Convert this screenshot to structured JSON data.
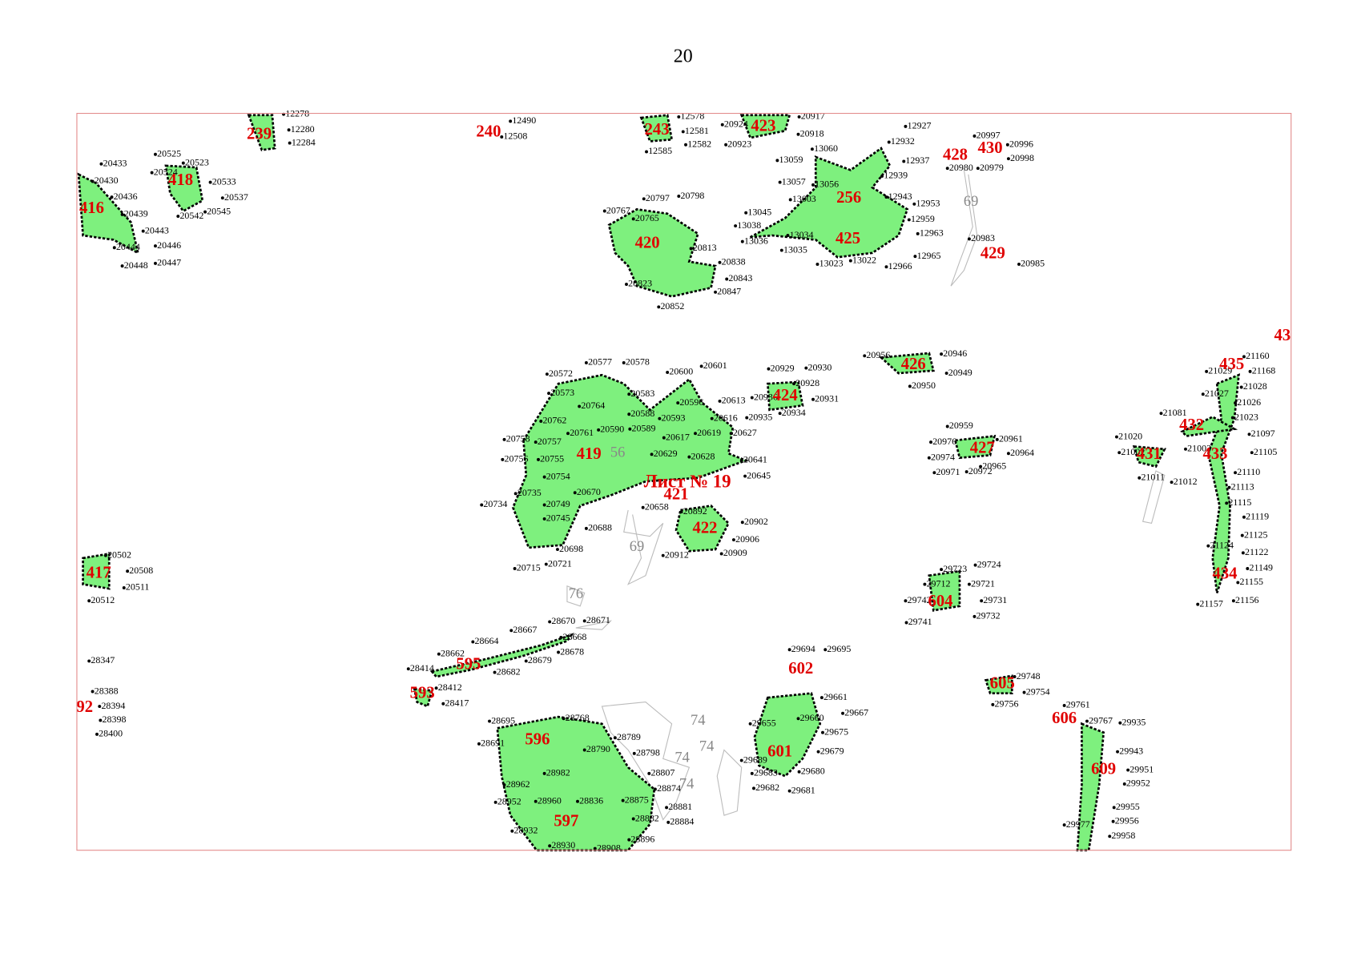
{
  "page_number": "20",
  "sheet_label": "Лист № 19",
  "parcels": [
    "239",
    "240",
    "243",
    "423",
    "428",
    "430",
    "418",
    "416",
    "256",
    "420",
    "425",
    "429",
    "426",
    "435",
    "424",
    "432",
    "427",
    "419",
    "431",
    "433",
    "421",
    "422",
    "417",
    "434",
    "604",
    "595",
    "602",
    "605",
    "593",
    "606",
    "596",
    "601",
    "609",
    "597",
    "43",
    "92"
  ],
  "contours": [
    "56",
    "69",
    "69",
    "76",
    "74",
    "74",
    "74",
    "74"
  ],
  "points": [
    "20433",
    "20430",
    "20436",
    "20439",
    "20443",
    "20446",
    "20444",
    "20448",
    "20447",
    "20525",
    "20523",
    "20524",
    "20533",
    "20537",
    "20545",
    "20542",
    "12278",
    "12280",
    "12284",
    "12490",
    "12508",
    "12578",
    "12581",
    "12582",
    "12585",
    "20924",
    "20917",
    "20918",
    "20923",
    "12927",
    "12932",
    "12937",
    "12939",
    "12943",
    "12953",
    "12959",
    "12963",
    "12965",
    "12966",
    "13022",
    "13023",
    "13035",
    "13034",
    "13036",
    "13038",
    "13045",
    "13003",
    "13057",
    "13059",
    "13060",
    "13056",
    "20997",
    "20996",
    "20998",
    "20980",
    "20979",
    "20983",
    "20985",
    "20797",
    "20798",
    "20767",
    "20765",
    "20813",
    "20838",
    "20843",
    "20847",
    "20852",
    "20823",
    "20577",
    "20578",
    "20572",
    "20600",
    "20601",
    "20573",
    "20583",
    "20613",
    "20764",
    "20596",
    "20762",
    "20588",
    "20593",
    "20616",
    "20761",
    "20590",
    "20589",
    "20627",
    "20758",
    "20757",
    "20617",
    "20619",
    "20629",
    "20756",
    "20755",
    "20628",
    "20641",
    "20754",
    "20645",
    "20670",
    "20735",
    "20734",
    "20749",
    "20745",
    "20688",
    "20698",
    "20721",
    "20715",
    "20658",
    "20892",
    "20902",
    "20906",
    "20909",
    "20912",
    "20929",
    "20930",
    "20928",
    "20936",
    "20931",
    "20935",
    "20934",
    "20956",
    "20946",
    "20949",
    "20950",
    "20959",
    "20961",
    "20976",
    "20964",
    "20974",
    "20965",
    "20972",
    "20971",
    "21160",
    "21168",
    "21029",
    "21028",
    "21027",
    "21026",
    "21081",
    "21023",
    "21097",
    "21105",
    "21020",
    "21002",
    "21003",
    "21012",
    "21011",
    "21110",
    "21113",
    "21115",
    "21119",
    "21125",
    "21124",
    "21122",
    "21149",
    "21155",
    "21157",
    "21156",
    "20502",
    "20508",
    "20511",
    "20512",
    "29723",
    "29724",
    "29721",
    "29712",
    "29742",
    "29731",
    "29732",
    "29741",
    "28670",
    "28671",
    "28667",
    "28668",
    "28664",
    "28678",
    "28662",
    "28679",
    "28414",
    "28682",
    "28417",
    "28412",
    "29694",
    "29695",
    "29661",
    "29667",
    "29660",
    "29655",
    "29675",
    "29679",
    "29680",
    "29681",
    "29682",
    "29683",
    "29689",
    "29748",
    "29754",
    "29756",
    "29761",
    "29767",
    "29935",
    "29943",
    "29951",
    "29952",
    "29955",
    "29956",
    "29958",
    "29977",
    "28695",
    "28691",
    "28768",
    "28789",
    "28790",
    "28798",
    "28807",
    "28874",
    "28881",
    "28884",
    "28882",
    "28875",
    "28836",
    "28962",
    "28952",
    "28960",
    "28932",
    "28930",
    "28908",
    "28896",
    "28982",
    "28388",
    "28394",
    "28398",
    "28400",
    "28347"
  ]
}
